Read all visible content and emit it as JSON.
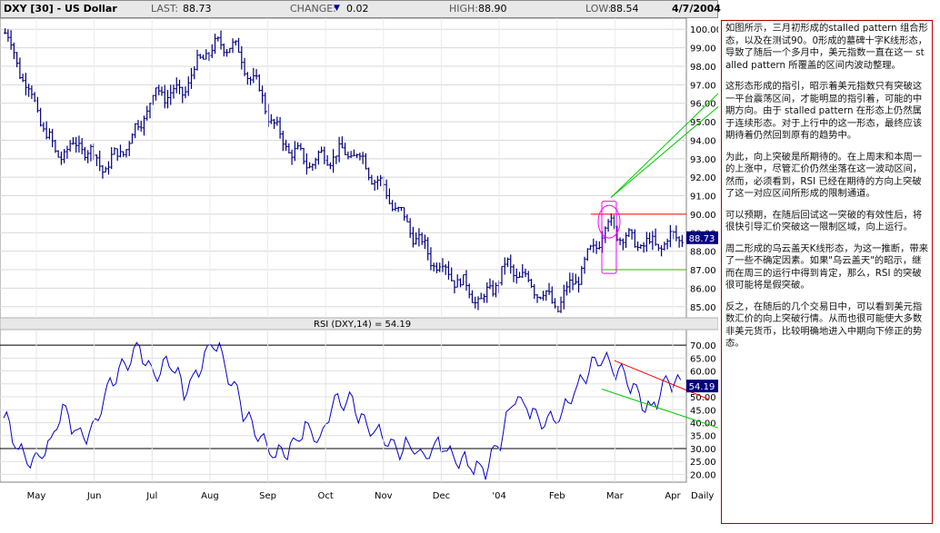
{
  "header": {
    "symbol": "DXY [30] - US Dollar",
    "last_label": "LAST:",
    "last_value": "88.73",
    "change_label": "CHANGE:",
    "change_arrow": "▼",
    "change_value": "0.02",
    "high_label": "HIGH:",
    "high_value": "88.90",
    "low_label": "LOW:",
    "low_value": "88.54",
    "date": "4/7/2004"
  },
  "colors": {
    "price_bars": "#000080",
    "rsi_line": "#0000cc",
    "annotation_red": "#ff0000",
    "annotation_green": "#00cc00",
    "annotation_magenta": "#ff00ff",
    "current_box": "#000080"
  },
  "chart_data": [
    {
      "type": "ohlc",
      "title": "DXY [30] - US Dollar",
      "x_ticks": [
        "May",
        "Jun",
        "Jul",
        "Aug",
        "Sep",
        "Oct",
        "Nov",
        "Dec",
        "'04",
        "Feb",
        "Mar",
        "Apr"
      ],
      "x_scale_label": "Daily",
      "y_ticks": [
        85.0,
        86.0,
        87.0,
        88.0,
        89.0,
        90.0,
        91.0,
        92.0,
        93.0,
        94.0,
        95.0,
        96.0,
        97.0,
        98.0,
        99.0,
        100.0
      ],
      "ylim": [
        84.4,
        100.6
      ],
      "current_value": "88.73",
      "approx_closes": [
        {
          "x": "May",
          "y": 99.8
        },
        {
          "x": "late May",
          "y": 96.5
        },
        {
          "x": "Jun",
          "y": 93.2
        },
        {
          "x": "mid Jun",
          "y": 93.8
        },
        {
          "x": "late Jun",
          "y": 92.5
        },
        {
          "x": "Jul",
          "y": 94.0
        },
        {
          "x": "mid Jul",
          "y": 96.6
        },
        {
          "x": "Aug",
          "y": 96.5
        },
        {
          "x": "mid Aug",
          "y": 98.8
        },
        {
          "x": "late Aug",
          "y": 99.3
        },
        {
          "x": "Sep",
          "y": 97.0
        },
        {
          "x": "mid Sep",
          "y": 94.0
        },
        {
          "x": "Oct",
          "y": 92.8
        },
        {
          "x": "mid Oct",
          "y": 93.2
        },
        {
          "x": "Nov",
          "y": 93.3
        },
        {
          "x": "mid Nov",
          "y": 91.5
        },
        {
          "x": "Dec",
          "y": 89.5
        },
        {
          "x": "late Dec",
          "y": 87.6
        },
        {
          "x": "'04",
          "y": 86.5
        },
        {
          "x": "mid Jan",
          "y": 85.2
        },
        {
          "x": "late Jan",
          "y": 87.2
        },
        {
          "x": "Feb",
          "y": 86.2
        },
        {
          "x": "mid Feb",
          "y": 85.0
        },
        {
          "x": "late Feb",
          "y": 87.0
        },
        {
          "x": "Mar",
          "y": 89.5
        },
        {
          "x": "mid Mar",
          "y": 88.5
        },
        {
          "x": "late Mar",
          "y": 88.3
        },
        {
          "x": "Apr",
          "y": 88.9
        }
      ],
      "annotations": {
        "red_resistance": 90.0,
        "green_support": 87.0
      }
    },
    {
      "type": "line",
      "title": "RSI (DXY,14) = 54.19",
      "y_ticks": [
        20.0,
        25.0,
        30.0,
        35.0,
        40.0,
        45.0,
        50.0,
        55.0,
        60.0,
        65.0,
        70.0
      ],
      "ylim": [
        17,
        76
      ],
      "reference_lines": [
        70,
        30
      ],
      "current_value": "54.19",
      "series": [
        {
          "points": [
            {
              "x": "May",
              "y": 43
            },
            {
              "x": "",
              "y": 29
            },
            {
              "x": "",
              "y": 25
            },
            {
              "x": "",
              "y": 30
            },
            {
              "x": "Jun",
              "y": 47
            },
            {
              "x": "",
              "y": 34
            },
            {
              "x": "",
              "y": 38
            },
            {
              "x": "",
              "y": 55
            },
            {
              "x": "Jul",
              "y": 62
            },
            {
              "x": "",
              "y": 70
            },
            {
              "x": "",
              "y": 58
            },
            {
              "x": "",
              "y": 64
            },
            {
              "x": "Aug",
              "y": 52
            },
            {
              "x": "",
              "y": 60
            },
            {
              "x": "",
              "y": 73
            },
            {
              "x": "",
              "y": 58
            },
            {
              "x": "Sep",
              "y": 44
            },
            {
              "x": "",
              "y": 35
            },
            {
              "x": "",
              "y": 27
            },
            {
              "x": "",
              "y": 30
            },
            {
              "x": "Oct",
              "y": 38
            },
            {
              "x": "",
              "y": 33
            },
            {
              "x": "",
              "y": 48
            },
            {
              "x": "",
              "y": 49
            },
            {
              "x": "Nov",
              "y": 40
            },
            {
              "x": "",
              "y": 35
            },
            {
              "x": "",
              "y": 29
            },
            {
              "x": "",
              "y": 31
            },
            {
              "x": "Dec",
              "y": 27
            },
            {
              "x": "",
              "y": 32
            },
            {
              "x": "",
              "y": 27
            },
            {
              "x": "",
              "y": 24
            },
            {
              "x": "'04",
              "y": 21
            },
            {
              "x": "",
              "y": 33
            },
            {
              "x": "",
              "y": 50
            },
            {
              "x": "",
              "y": 45
            },
            {
              "x": "Feb",
              "y": 40
            },
            {
              "x": "",
              "y": 42
            },
            {
              "x": "",
              "y": 52
            },
            {
              "x": "",
              "y": 62
            },
            {
              "x": "Mar",
              "y": 65
            },
            {
              "x": "",
              "y": 59
            },
            {
              "x": "",
              "y": 53
            },
            {
              "x": "",
              "y": 44
            },
            {
              "x": "Apr",
              "y": 57
            },
            {
              "x": "",
              "y": 54.19
            }
          ]
        }
      ],
      "annotations": {
        "red_channel": [
          [
            64,
            73
          ],
          [
            54,
            49
          ]
        ],
        "green_channel": [
          [
            53,
            58
          ],
          [
            33,
            38
          ]
        ]
      }
    }
  ],
  "notes": [
    "如图所示，三月初形成的stalled pattern 组合形态，以及在测试90。0形成的墓碑十字K线形态，导致了随后一个多月中，美元指数一直在这一 stalled pattern 所覆盖的区间内波动整理。",
    "这形态形成的指引，昭示着美元指数只有突破这一平台震荡区间，才能明显的指引着，可能的中期方向。由于 stalled pattern 在形态上仍然属于连续形态。对于上行中的这一形态，最终应该期待着仍然回到原有的趋势中。",
    "为此，向上突破是所期待的。在上周末和本周一的上涨中，尽管汇价仍然坐落在这一波动区间，然而，必须看到，RSI 已经在期待的方向上突破了这一对应区间所形成的限制通道。",
    "可以预期，在随后回试这一突破的有效性后，将很快引导汇价突破这一限制区域，向上运行。",
    "周二形成的乌云盖天K线形态，为这一推断，带来了一些不确定因素。如果\"乌云盖天\"的昭示，继而在周三的运行中得到肯定，那么，RSI 的突破很可能将是假突破。",
    "反之，在随后的几个交易日中，可以看到美元指数汇价的向上突破行情。从而也很可能使大多数非美元货币，比较明确地进入中期向下修正的势态。"
  ]
}
